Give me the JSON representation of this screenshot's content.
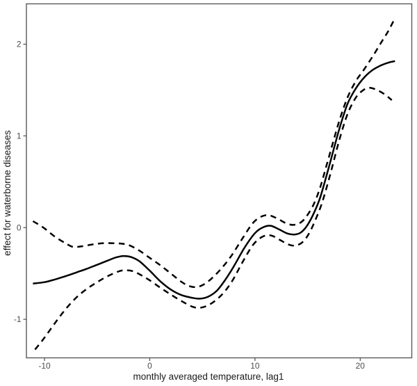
{
  "chart_data": {
    "type": "line",
    "title": "",
    "xlabel": "monthly averaged temperature, lag1",
    "ylabel": "effect for waterborne diseases",
    "xlim": [
      -11.72,
      24.9
    ],
    "ylim": [
      -1.42,
      2.44
    ],
    "x_ticks": [
      "-10",
      "0",
      "10",
      "20"
    ],
    "x_tick_values": [
      -10,
      0,
      10,
      20
    ],
    "y_ticks": [
      "-1",
      "0",
      "1",
      "2"
    ],
    "y_tick_values": [
      -1,
      0,
      1,
      2
    ],
    "grid": false,
    "legend_position": "none",
    "line_color": "#000000",
    "panel_border_color": "#595959",
    "tick_color": "#4d4d4d",
    "tick_label_color": "#4d4d4d",
    "axis_label_color": "#1a1a1a",
    "series": [
      {
        "name": "smooth-fit",
        "style": "solid",
        "points": [
          [
            -11.1,
            -0.61
          ],
          [
            -10,
            -0.595
          ],
          [
            -9,
            -0.565
          ],
          [
            -8,
            -0.53
          ],
          [
            -7,
            -0.49
          ],
          [
            -6,
            -0.45
          ],
          [
            -5,
            -0.405
          ],
          [
            -4,
            -0.36
          ],
          [
            -3.2,
            -0.325
          ],
          [
            -2.5,
            -0.31
          ],
          [
            -1.8,
            -0.32
          ],
          [
            -1,
            -0.365
          ],
          [
            0,
            -0.47
          ],
          [
            1,
            -0.585
          ],
          [
            2,
            -0.675
          ],
          [
            3,
            -0.735
          ],
          [
            4,
            -0.765
          ],
          [
            4.8,
            -0.775
          ],
          [
            5.6,
            -0.75
          ],
          [
            6.4,
            -0.685
          ],
          [
            7.2,
            -0.565
          ],
          [
            8,
            -0.42
          ],
          [
            9,
            -0.22
          ],
          [
            10,
            -0.06
          ],
          [
            10.8,
            0.005
          ],
          [
            11.5,
            0.02
          ],
          [
            12.3,
            -0.02
          ],
          [
            13.1,
            -0.065
          ],
          [
            13.8,
            -0.075
          ],
          [
            14.4,
            -0.05
          ],
          [
            15,
            0.03
          ],
          [
            15.6,
            0.16
          ],
          [
            16.2,
            0.33
          ],
          [
            17,
            0.65
          ],
          [
            18,
            1.07
          ],
          [
            18.8,
            1.35
          ],
          [
            19.6,
            1.52
          ],
          [
            20.4,
            1.64
          ],
          [
            21.2,
            1.72
          ],
          [
            22,
            1.77
          ],
          [
            22.7,
            1.8
          ],
          [
            23.3,
            1.815
          ]
        ]
      },
      {
        "name": "upper-confidence-band",
        "style": "dashed",
        "points": [
          [
            -11.1,
            0.07
          ],
          [
            -10.1,
            0.0
          ],
          [
            -9,
            -0.1
          ],
          [
            -8,
            -0.17
          ],
          [
            -7.3,
            -0.21
          ],
          [
            -6.5,
            -0.205
          ],
          [
            -5.5,
            -0.185
          ],
          [
            -4.5,
            -0.17
          ],
          [
            -3.5,
            -0.17
          ],
          [
            -2.7,
            -0.175
          ],
          [
            -2,
            -0.19
          ],
          [
            -1,
            -0.25
          ],
          [
            0,
            -0.33
          ],
          [
            1,
            -0.41
          ],
          [
            2,
            -0.5
          ],
          [
            3,
            -0.59
          ],
          [
            3.8,
            -0.64
          ],
          [
            4.6,
            -0.645
          ],
          [
            5.4,
            -0.6
          ],
          [
            6.2,
            -0.52
          ],
          [
            7,
            -0.42
          ],
          [
            7.8,
            -0.3
          ],
          [
            8.8,
            -0.12
          ],
          [
            9.8,
            0.05
          ],
          [
            10.6,
            0.12
          ],
          [
            11.3,
            0.135
          ],
          [
            12.1,
            0.1
          ],
          [
            13,
            0.045
          ],
          [
            13.7,
            0.03
          ],
          [
            14.4,
            0.06
          ],
          [
            15,
            0.14
          ],
          [
            15.6,
            0.26
          ],
          [
            16.2,
            0.44
          ],
          [
            17,
            0.76
          ],
          [
            18,
            1.16
          ],
          [
            18.8,
            1.42
          ],
          [
            19.6,
            1.6
          ],
          [
            20.4,
            1.73
          ],
          [
            21.2,
            1.87
          ],
          [
            22,
            2.02
          ],
          [
            22.6,
            2.13
          ],
          [
            23.2,
            2.26
          ]
        ]
      },
      {
        "name": "lower-confidence-band",
        "style": "dashed",
        "points": [
          [
            -10.9,
            -1.33
          ],
          [
            -10,
            -1.2
          ],
          [
            -9,
            -1.04
          ],
          [
            -8,
            -0.89
          ],
          [
            -7,
            -0.765
          ],
          [
            -6,
            -0.67
          ],
          [
            -5,
            -0.595
          ],
          [
            -4,
            -0.53
          ],
          [
            -3,
            -0.48
          ],
          [
            -2.4,
            -0.465
          ],
          [
            -1.6,
            -0.475
          ],
          [
            -0.8,
            -0.52
          ],
          [
            0,
            -0.575
          ],
          [
            1,
            -0.655
          ],
          [
            2,
            -0.73
          ],
          [
            3,
            -0.8
          ],
          [
            4,
            -0.86
          ],
          [
            4.7,
            -0.875
          ],
          [
            5.5,
            -0.85
          ],
          [
            6.3,
            -0.79
          ],
          [
            7.1,
            -0.7
          ],
          [
            7.9,
            -0.57
          ],
          [
            8.8,
            -0.38
          ],
          [
            9.8,
            -0.19
          ],
          [
            10.7,
            -0.1
          ],
          [
            11.5,
            -0.085
          ],
          [
            12.3,
            -0.13
          ],
          [
            13.2,
            -0.185
          ],
          [
            13.9,
            -0.195
          ],
          [
            14.6,
            -0.15
          ],
          [
            15.2,
            -0.05
          ],
          [
            15.8,
            0.1
          ],
          [
            16.4,
            0.28
          ],
          [
            17.2,
            0.6
          ],
          [
            18,
            0.95
          ],
          [
            18.8,
            1.24
          ],
          [
            19.6,
            1.42
          ],
          [
            20.3,
            1.5
          ],
          [
            20.9,
            1.525
          ],
          [
            21.6,
            1.5
          ],
          [
            22.3,
            1.455
          ],
          [
            23,
            1.39
          ]
        ]
      }
    ]
  }
}
